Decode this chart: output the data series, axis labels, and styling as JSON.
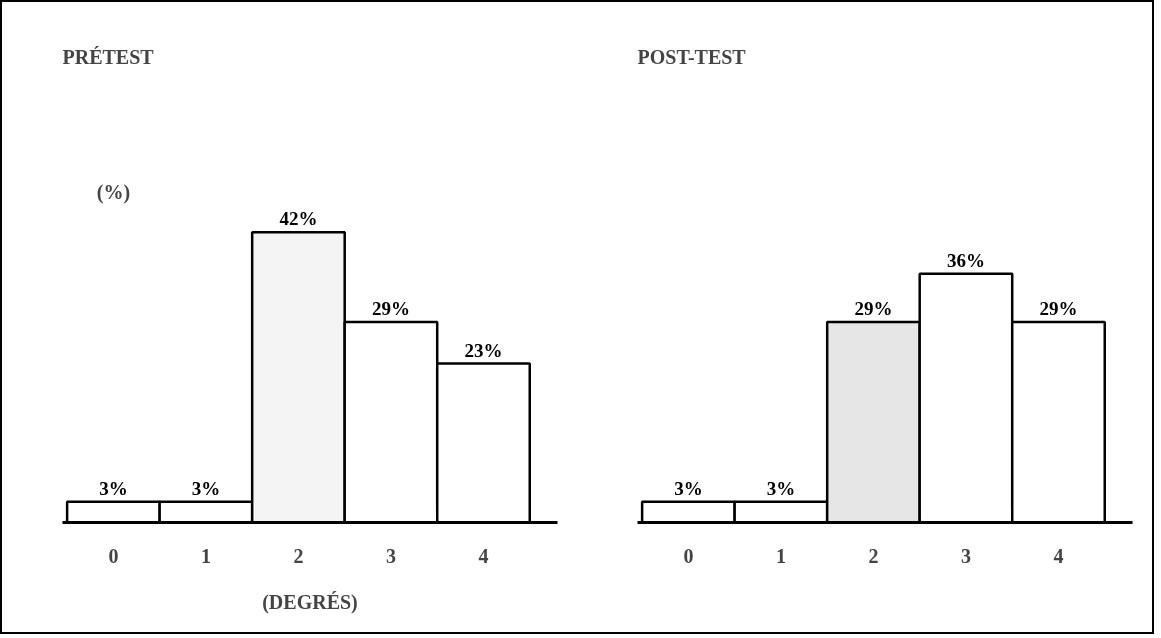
{
  "chart_data": [
    {
      "type": "bar",
      "title": "PRÉTEST",
      "ylabel": "(%)",
      "xlabel": "(DEGRÉS)",
      "categories": [
        "0",
        "1",
        "2",
        "3",
        "4"
      ],
      "values": [
        3,
        3,
        42,
        29,
        23
      ],
      "value_labels": [
        "3%",
        "3%",
        "42%",
        "29%",
        "23%"
      ],
      "colors": [
        "#ffffff",
        "#ffffff",
        "#f4f4f4",
        "#ffffff",
        "#ffffff"
      ],
      "tick_labels": "x",
      "grid": false
    },
    {
      "type": "bar",
      "title": "POST-TEST",
      "categories": [
        "0",
        "1",
        "2",
        "3",
        "4"
      ],
      "values": [
        3,
        3,
        29,
        36,
        29
      ],
      "value_labels": [
        "3%",
        "3%",
        "29%",
        "36%",
        "29%"
      ],
      "colors": [
        "#ffffff",
        "#ffffff",
        "#e6e6e6",
        "#ffffff",
        "#ffffff"
      ],
      "tick_labels": "x",
      "grid": false
    }
  ]
}
